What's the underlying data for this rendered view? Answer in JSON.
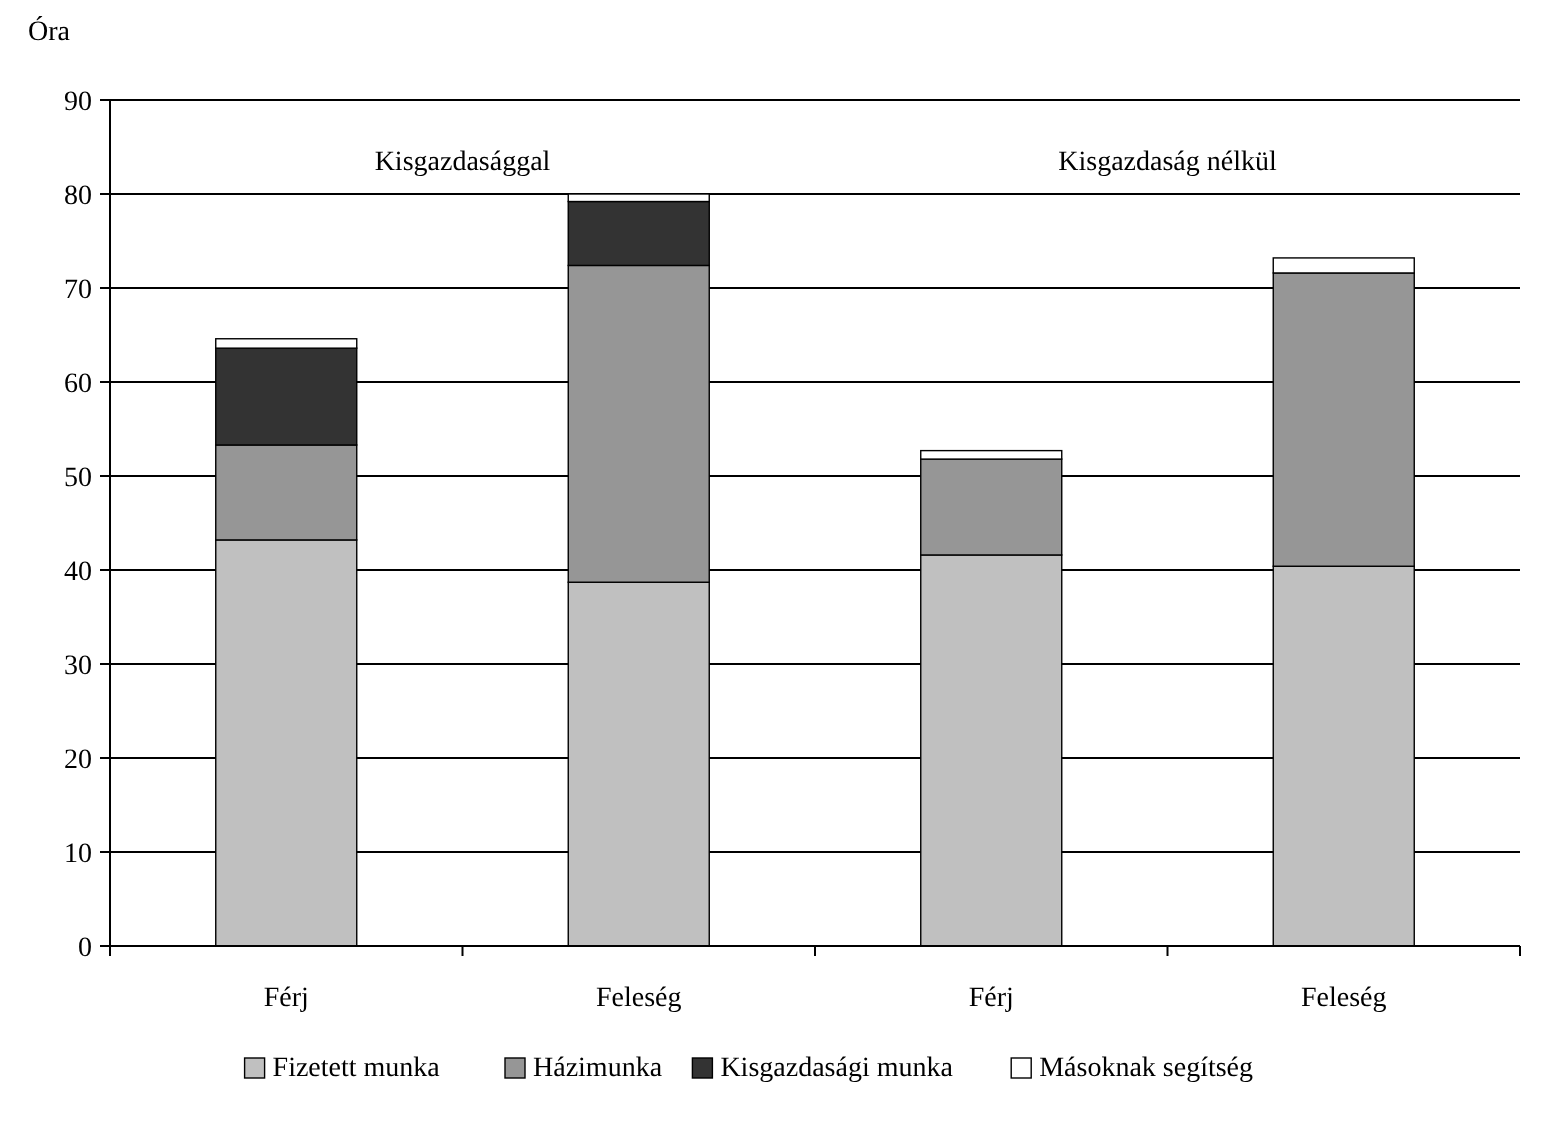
{
  "chart_data": {
    "type": "bar",
    "stacked": true,
    "ylabel": "Óra",
    "categories": [
      "Férj",
      "Feleség",
      "Férj",
      "Feleség"
    ],
    "series": [
      {
        "name": "Fizetett munka",
        "color": "#c0c0c0",
        "values": [
          43.2,
          38.7,
          41.6,
          40.4
        ]
      },
      {
        "name": "Házimunka",
        "color": "#969696",
        "values": [
          10.1,
          33.7,
          10.2,
          31.2
        ]
      },
      {
        "name": "Kisgazdasági munka",
        "color": "#333333",
        "values": [
          10.3,
          6.8,
          0,
          0
        ]
      },
      {
        "name": "Másoknak segítség",
        "color": "#ffffff",
        "values": [
          1.0,
          0.8,
          0.9,
          1.6
        ]
      }
    ],
    "annotations": [
      "Kisgazdasággal",
      "Kisgazdaság nélkül"
    ],
    "ylim": [
      0,
      90
    ],
    "yticks": [
      0,
      10,
      20,
      30,
      40,
      50,
      60,
      70,
      80,
      90
    ],
    "grid": "y",
    "legend": "bottom"
  }
}
